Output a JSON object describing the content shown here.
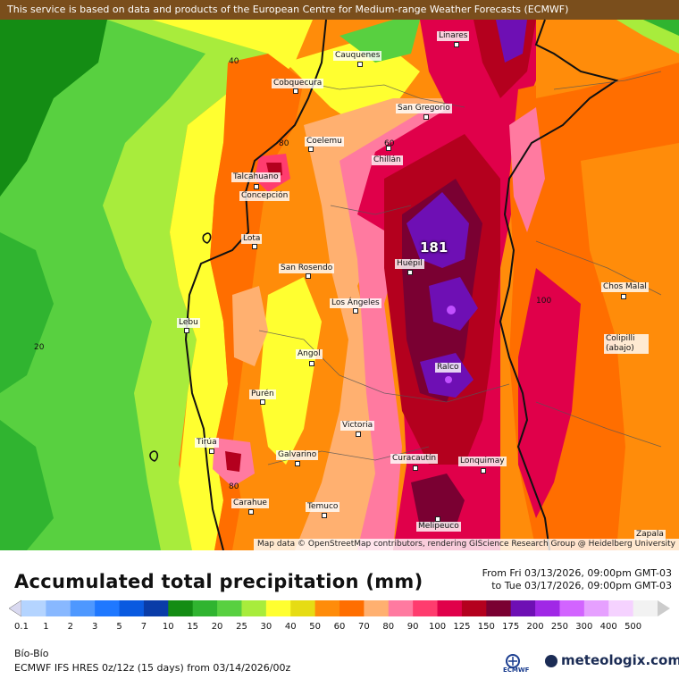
{
  "banner": "This service is based on data and products of the European Centre for Medium-range Weather Forecasts (ECMWF)",
  "attribution": "Map data © OpenStreetMap contributors, rendering GIScience Research Group @ Heidelberg University",
  "cities": [
    "Linares",
    "Cauquenes",
    "Cobquecura",
    "San Gregorio",
    "Coelemu",
    "Chillán",
    "Talcahuano",
    "Concepción",
    "Lota",
    "San Rosendo",
    "Huépil",
    "Los Ángeles",
    "Chos Malal",
    "Lebu",
    "Colipilli (abajo)",
    "Angol",
    "Ralco",
    "Purén",
    "Victoria",
    "Tirúa",
    "Galvarino",
    "Curacautín",
    "Lonquimay",
    "Carahue",
    "Temuco",
    "Melipeuco",
    "Zapala"
  ],
  "contour_labels": [
    "40",
    "60",
    "80",
    "20",
    "100",
    "80"
  ],
  "max_value": "181",
  "title": "Accumulated total precipitation (mm)",
  "valid_from": "From Fri 03/13/2026, 09:00pm GMT-03",
  "valid_to": "to Tue 03/17/2026, 09:00pm GMT-03",
  "legend": {
    "ticks": [
      "0.1",
      "1",
      "2",
      "3",
      "5",
      "7",
      "10",
      "15",
      "20",
      "25",
      "30",
      "40",
      "50",
      "60",
      "70",
      "80",
      "90",
      "100",
      "125",
      "150",
      "175",
      "200",
      "250",
      "300",
      "400",
      "500"
    ],
    "colors": [
      "#d9d9f0",
      "#b4d4ff",
      "#88b8ff",
      "#4e98ff",
      "#1f78ff",
      "#0a5ae0",
      "#0a3ca8",
      "#148c14",
      "#30b430",
      "#58d040",
      "#a8ec3c",
      "#ffff30",
      "#e6dc14",
      "#ff8c0a",
      "#ff6e00",
      "#ffb070",
      "#ff7aa0",
      "#ff3c6e",
      "#e0004a",
      "#b4001e",
      "#7a0032",
      "#6e0fb4",
      "#a028e6",
      "#d264ff",
      "#e6a0ff",
      "#f5d2ff",
      "#f2f2f2",
      "#cccccc"
    ]
  },
  "region": "Bío-Bío",
  "model": "ECMWF IFS HRES 0z/12z (15 days) from  03/14/2026/00z",
  "logo_ecmwf": "ECMWF",
  "brand": "meteologix.com"
}
